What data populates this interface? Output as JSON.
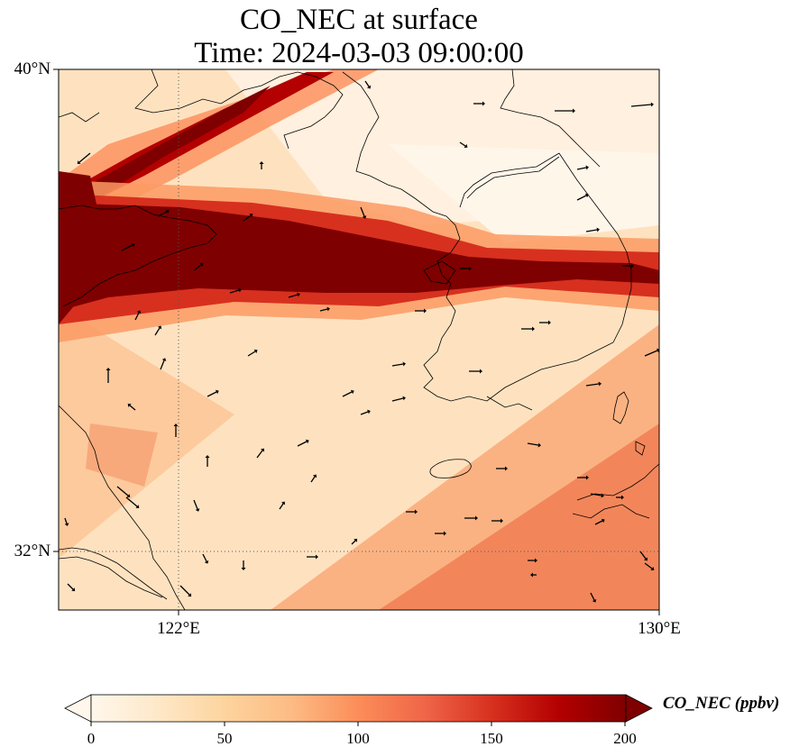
{
  "title": {
    "line1": "CO_NEC at surface",
    "line2": "Time: 2024-03-03 09:00:00"
  },
  "axes": {
    "lat_labels": [
      "40°N",
      "32°N"
    ],
    "lon_labels": [
      "122°E",
      "130°E"
    ]
  },
  "colorbar": {
    "label": "CO_NEC (ppbv)",
    "ticks": [
      "0",
      "50",
      "100",
      "150",
      "200"
    ],
    "colormap": [
      "#fff7ec",
      "#fee8c8",
      "#fdd49e",
      "#fdbb84",
      "#fc8d59",
      "#ef6548",
      "#d7301f",
      "#b30000",
      "#7f0000"
    ],
    "extend": "both"
  },
  "colors": {
    "coastline": "#000000",
    "gridline": "#555555"
  }
}
